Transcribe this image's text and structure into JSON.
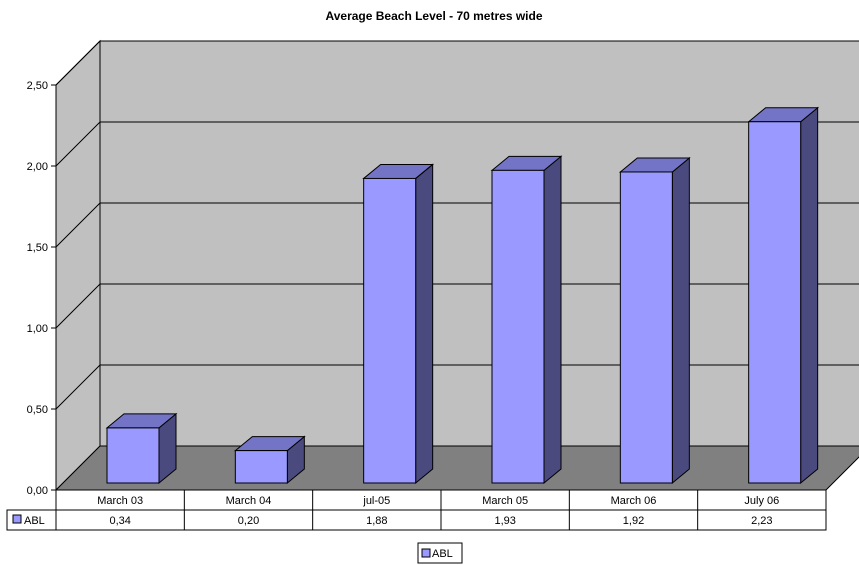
{
  "chart_data": {
    "type": "bar",
    "title": "Average Beach Level - 70 metres wide",
    "categories": [
      "March 03",
      "March 04",
      "jul-05",
      "March 05",
      "March 06",
      "July 06"
    ],
    "series": [
      {
        "name": "ABL",
        "values": [
          0.34,
          0.2,
          1.88,
          1.93,
          1.92,
          2.23
        ],
        "value_labels": [
          "0,34",
          "0,20",
          "1,88",
          "1,93",
          "1,92",
          "2,23"
        ]
      }
    ],
    "ylim": [
      0,
      2.5
    ],
    "yticks": [
      0,
      0.5,
      1.0,
      1.5,
      2.0,
      2.5
    ],
    "ytick_labels": [
      "0,00",
      "0,50",
      "1,00",
      "1,50",
      "2,00",
      "2,50"
    ],
    "xlabel": "",
    "ylabel": "",
    "grid": true,
    "three_d": true,
    "data_table": true,
    "legend": {
      "position": "bottom-center",
      "entries": [
        "ABL"
      ]
    },
    "colors": {
      "bar_front": "#9999ff",
      "bar_side": "#4a4a7f",
      "bar_top": "#7474c6",
      "wall": "#c0c0c0",
      "floor": "#808080",
      "gridline": "#000000"
    }
  }
}
